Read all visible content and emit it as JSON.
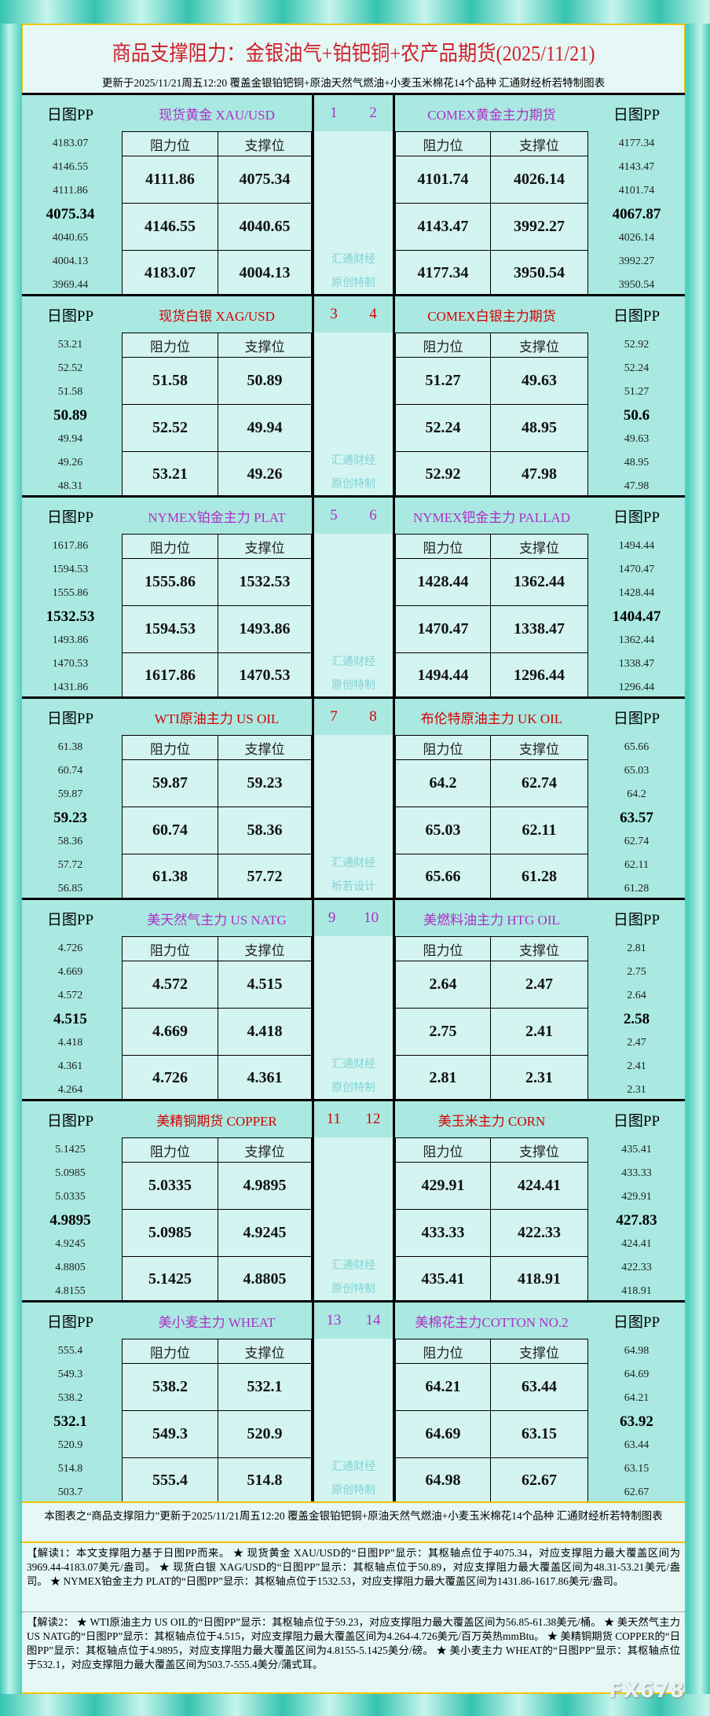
{
  "header": {
    "title": "商品支撑阻力：金银油气+铂钯铜+农产品期货(2025/11/21)",
    "subtitle": "更新于2025/11/21周五12:20  覆盖金银铂钯铜+原油天然气燃油+小麦玉米棉花14个品种  汇通财经析若特制图表"
  },
  "labels": {
    "pp": "日图PP",
    "resistance": "阻力位",
    "support": "支撑位"
  },
  "colors": {
    "purple": "#b02ec8",
    "red": "#d40000",
    "title": "#d0202a"
  },
  "blocks": [
    {
      "nums": [
        "1",
        "2"
      ],
      "color": "#b02ec8",
      "watermark": [
        "汇通财经",
        "原创特制"
      ],
      "left": {
        "name": "现货黄金 XAU/USD",
        "pp": [
          "4183.07",
          "4146.55",
          "4111.86",
          "4075.34",
          "4040.65",
          "4004.13",
          "3969.44"
        ],
        "rows": [
          [
            "4111.86",
            "4075.34"
          ],
          [
            "4146.55",
            "4040.65"
          ],
          [
            "4183.07",
            "4004.13"
          ]
        ]
      },
      "right": {
        "name": "COMEX黄金主力期货",
        "pp": [
          "4177.34",
          "4143.47",
          "4101.74",
          "4067.87",
          "4026.14",
          "3992.27",
          "3950.54"
        ],
        "rows": [
          [
            "4101.74",
            "4026.14"
          ],
          [
            "4143.47",
            "3992.27"
          ],
          [
            "4177.34",
            "3950.54"
          ]
        ]
      }
    },
    {
      "nums": [
        "3",
        "4"
      ],
      "color": "#d40000",
      "watermark": [
        "汇通财经",
        "原创特制"
      ],
      "left": {
        "name": "现货白银 XAG/USD",
        "pp": [
          "53.21",
          "52.52",
          "51.58",
          "50.89",
          "49.94",
          "49.26",
          "48.31"
        ],
        "rows": [
          [
            "51.58",
            "50.89"
          ],
          [
            "52.52",
            "49.94"
          ],
          [
            "53.21",
            "49.26"
          ]
        ]
      },
      "right": {
        "name": "COMEX白银主力期货",
        "pp": [
          "52.92",
          "52.24",
          "51.27",
          "50.6",
          "49.63",
          "48.95",
          "47.98"
        ],
        "rows": [
          [
            "51.27",
            "49.63"
          ],
          [
            "52.24",
            "48.95"
          ],
          [
            "52.92",
            "47.98"
          ]
        ]
      }
    },
    {
      "nums": [
        "5",
        "6"
      ],
      "color": "#b02ec8",
      "watermark": [
        "汇通财经",
        "原创特制"
      ],
      "left": {
        "name": "NYMEX铂金主力 PLAT",
        "pp": [
          "1617.86",
          "1594.53",
          "1555.86",
          "1532.53",
          "1493.86",
          "1470.53",
          "1431.86"
        ],
        "rows": [
          [
            "1555.86",
            "1532.53"
          ],
          [
            "1594.53",
            "1493.86"
          ],
          [
            "1617.86",
            "1470.53"
          ]
        ]
      },
      "right": {
        "name": "NYMEX钯金主力 PALLAD",
        "pp": [
          "1494.44",
          "1470.47",
          "1428.44",
          "1404.47",
          "1362.44",
          "1338.47",
          "1296.44"
        ],
        "rows": [
          [
            "1428.44",
            "1362.44"
          ],
          [
            "1470.47",
            "1338.47"
          ],
          [
            "1494.44",
            "1296.44"
          ]
        ]
      }
    },
    {
      "nums": [
        "7",
        "8"
      ],
      "color": "#d40000",
      "watermark": [
        "汇通财经",
        "析若设计"
      ],
      "left": {
        "name": "WTI原油主力 US OIL",
        "pp": [
          "61.38",
          "60.74",
          "59.87",
          "59.23",
          "58.36",
          "57.72",
          "56.85"
        ],
        "rows": [
          [
            "59.87",
            "59.23"
          ],
          [
            "60.74",
            "58.36"
          ],
          [
            "61.38",
            "57.72"
          ]
        ]
      },
      "right": {
        "name": "布伦特原油主力 UK OIL",
        "pp": [
          "65.66",
          "65.03",
          "64.2",
          "63.57",
          "62.74",
          "62.11",
          "61.28"
        ],
        "rows": [
          [
            "64.2",
            "62.74"
          ],
          [
            "65.03",
            "62.11"
          ],
          [
            "65.66",
            "61.28"
          ]
        ]
      }
    },
    {
      "nums": [
        "9",
        "10"
      ],
      "color": "#b02ec8",
      "watermark": [
        "汇通财经",
        "原创特制"
      ],
      "left": {
        "name": "美天然气主力 US NATG",
        "pp": [
          "4.726",
          "4.669",
          "4.572",
          "4.515",
          "4.418",
          "4.361",
          "4.264"
        ],
        "rows": [
          [
            "4.572",
            "4.515"
          ],
          [
            "4.669",
            "4.418"
          ],
          [
            "4.726",
            "4.361"
          ]
        ]
      },
      "right": {
        "name": "美燃料油主力 HTG OIL",
        "pp": [
          "2.81",
          "2.75",
          "2.64",
          "2.58",
          "2.47",
          "2.41",
          "2.31"
        ],
        "rows": [
          [
            "2.64",
            "2.47"
          ],
          [
            "2.75",
            "2.41"
          ],
          [
            "2.81",
            "2.31"
          ]
        ]
      }
    },
    {
      "nums": [
        "11",
        "12"
      ],
      "color": "#d40000",
      "watermark": [
        "汇通财经",
        "原创特制"
      ],
      "left": {
        "name": "美精铜期货 COPPER",
        "pp": [
          "5.1425",
          "5.0985",
          "5.0335",
          "4.9895",
          "4.9245",
          "4.8805",
          "4.8155"
        ],
        "rows": [
          [
            "5.0335",
            "4.9895"
          ],
          [
            "5.0985",
            "4.9245"
          ],
          [
            "5.1425",
            "4.8805"
          ]
        ]
      },
      "right": {
        "name": "美玉米主力 CORN",
        "pp": [
          "435.41",
          "433.33",
          "429.91",
          "427.83",
          "424.41",
          "422.33",
          "418.91"
        ],
        "rows": [
          [
            "429.91",
            "424.41"
          ],
          [
            "433.33",
            "422.33"
          ],
          [
            "435.41",
            "418.91"
          ]
        ]
      }
    },
    {
      "nums": [
        "13",
        "14"
      ],
      "color": "#b02ec8",
      "watermark": [
        "汇通财经",
        "原创特制"
      ],
      "left": {
        "name": "美小麦主力 WHEAT",
        "pp": [
          "555.4",
          "549.3",
          "538.2",
          "532.1",
          "520.9",
          "514.8",
          "503.7"
        ],
        "rows": [
          [
            "538.2",
            "532.1"
          ],
          [
            "549.3",
            "520.9"
          ],
          [
            "555.4",
            "514.8"
          ]
        ]
      },
      "right": {
        "name": "美棉花主力COTTON NO.2",
        "pp": [
          "64.98",
          "64.69",
          "64.21",
          "63.92",
          "63.44",
          "63.15",
          "62.67"
        ],
        "rows": [
          [
            "64.21",
            "63.44"
          ],
          [
            "64.69",
            "63.15"
          ],
          [
            "64.98",
            "62.67"
          ]
        ]
      }
    }
  ],
  "footer": {
    "summary": "本图表之“商品支撑阻力”更新于2025/11/21周五12:20  覆盖金银铂钯铜+原油天然气燃油+小麦玉米棉花14个品种  汇通财经析若特制图表",
    "note1": "【解读1：本文支撑阻力基于日图PP而来。 ★ 现货黄金 XAU/USD的“日图PP”显示：其枢轴点位于4075.34，对应支撑阻力最大覆盖区间为3969.44-4183.07美元/盎司。 ★ 现货白银 XAG/USD的“日图PP”显示：其枢轴点位于50.89，对应支撑阻力最大覆盖区间为48.31-53.21美元/盎司。 ★ NYMEX铂金主力 PLAT的“日图PP”显示：其枢轴点位于1532.53，对应支撑阻力最大覆盖区间为1431.86-1617.86美元/盎司。",
    "note2": "【解读2： ★ WTI原油主力 US OIL的“日图PP”显示：其枢轴点位于59.23，对应支撑阻力最大覆盖区间为56.85-61.38美元/桶。 ★ 美天然气主力 US NATG的“日图PP”显示：其枢轴点位于4.515，对应支撑阻力最大覆盖区间为4.264-4.726美元/百万英热mmBtu。 ★ 美精铜期货 COPPER的“日图PP”显示：其枢轴点位于4.9895，对应支撑阻力最大覆盖区间为4.8155-5.1425美分/磅。 ★ 美小麦主力 WHEAT的“日图PP”显示：其枢轴点位于532.1，对应支撑阻力最大覆盖区间为503.7-555.4美分/蒲式耳。",
    "logo": "FX678"
  }
}
